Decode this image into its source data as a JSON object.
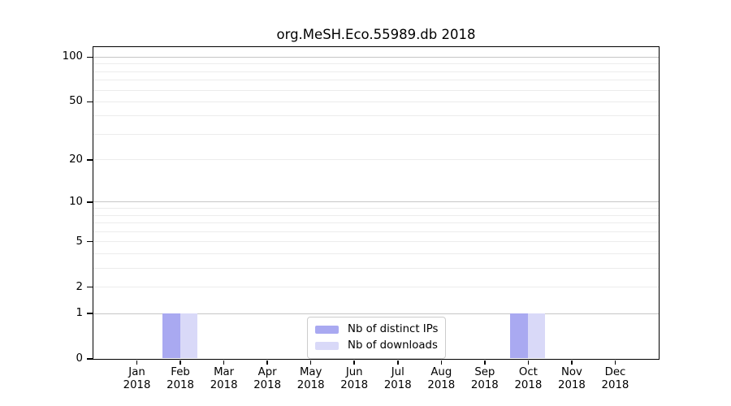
{
  "chart_data": {
    "type": "bar",
    "title": "org.MeSH.Eco.55989.db 2018",
    "x_months": [
      "Jan",
      "Feb",
      "Mar",
      "Apr",
      "May",
      "Jun",
      "Jul",
      "Aug",
      "Sep",
      "Oct",
      "Nov",
      "Dec"
    ],
    "x_year": "2018",
    "series": [
      {
        "name": "Nb of distinct IPs",
        "color": "#a9a9f1",
        "values": [
          0,
          1,
          0,
          0,
          0,
          0,
          0,
          0,
          0,
          1,
          0,
          0
        ]
      },
      {
        "name": "Nb of downloads",
        "color": "#d9d9f8",
        "values": [
          0,
          1,
          0,
          0,
          0,
          0,
          0,
          0,
          0,
          1,
          0,
          0
        ]
      }
    ],
    "y_axis": {
      "scale": "log1p",
      "ticks": [
        0,
        1,
        2,
        5,
        10,
        20,
        50,
        100
      ],
      "minor_gridlines": [
        2,
        3,
        4,
        5,
        6,
        7,
        8,
        9,
        20,
        30,
        40,
        50,
        60,
        70,
        80,
        90
      ],
      "major_gridlines": [
        1,
        10,
        100
      ],
      "ylim": [
        0,
        100
      ]
    },
    "xlabel": "",
    "ylabel": "",
    "grid": true,
    "legend": {
      "position": "lower center"
    },
    "colors": {
      "axis": "#000000",
      "minor_grid": "#ececec",
      "major_grid": "#c6c6c6",
      "legend_border": "#cccccc",
      "background": "#ffffff"
    }
  }
}
